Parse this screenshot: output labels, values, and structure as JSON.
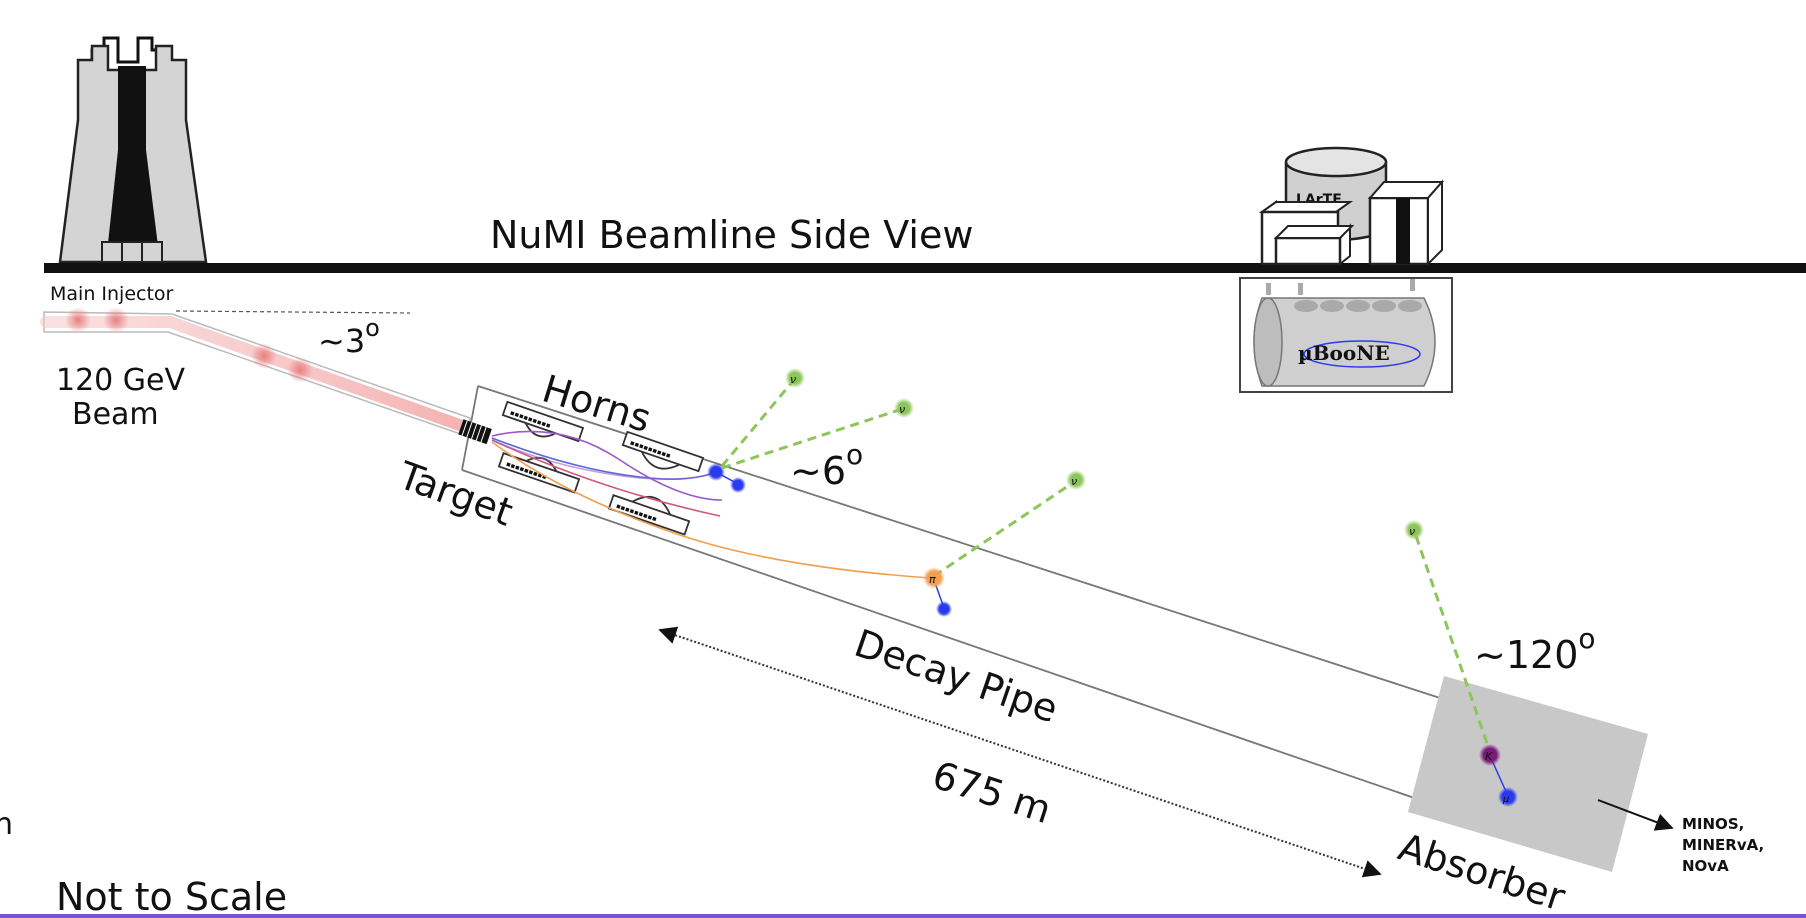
{
  "title": "NuMI Beamline Side View",
  "labels": {
    "main_injector": "Main Injector",
    "beam_energy_line1": "120 GeV",
    "beam_energy_line2": "Beam",
    "angle_injector": "~3",
    "angle_injector_sup": "o",
    "horns": "Horns",
    "target": "Target",
    "angle_horns": "~6",
    "angle_horns_sup": "o",
    "decay_pipe": "Decay Pipe",
    "length": "675 m",
    "angle_absorber": "~120",
    "angle_absorber_sup": "o",
    "absorber": "Absorber",
    "downstream_line1": "MINOS,",
    "downstream_line2": "MINERvA,",
    "downstream_line3": "NOvA",
    "lartf": "LArTF",
    "microboone": "µBooNE",
    "footer": "Not to Scale",
    "stray": "n"
  },
  "particles": {
    "neutrino": "ν",
    "pion": "π",
    "kaon": "K",
    "muon": "μ"
  },
  "colors": {
    "ground": "#111111",
    "beam": "#f2a3a3",
    "neutrino": "#8cc65a",
    "pion": "#f0a050",
    "muon": "#2a3af0",
    "kaon": "#7a1a7a",
    "absorber": "#c8c8c8",
    "footer_rule": "#7b52c7"
  }
}
